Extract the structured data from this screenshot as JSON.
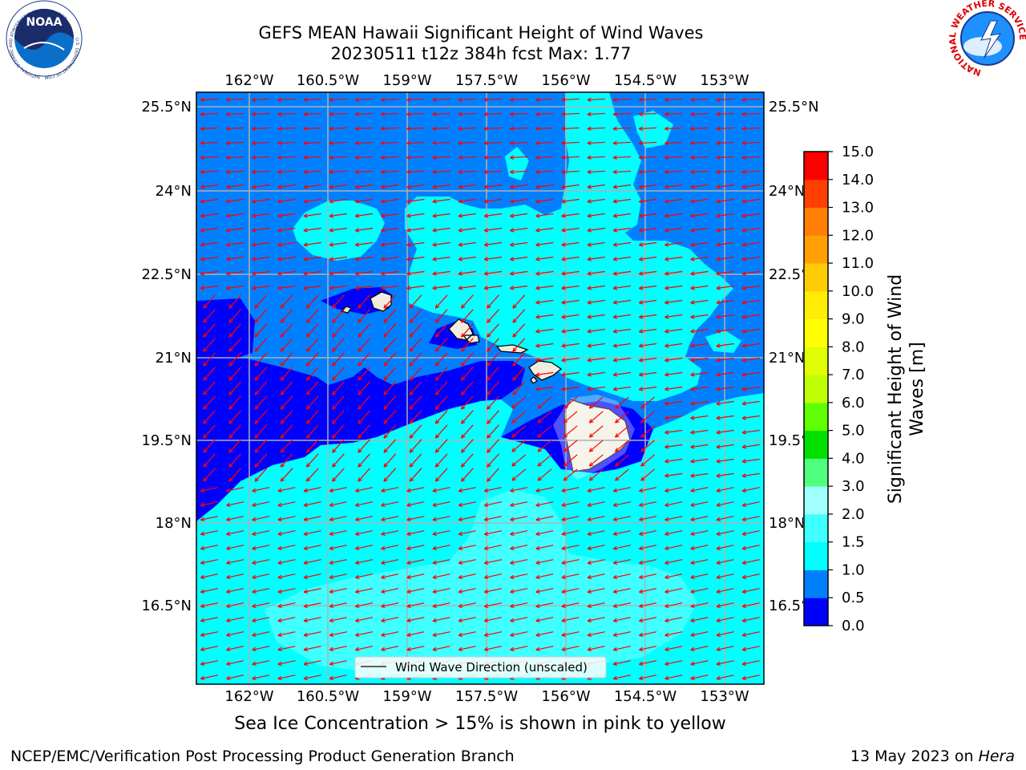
{
  "header": {
    "title_line1": "GEFS MEAN Hawaii Significant Height of Wind Waves",
    "title_line2": "20230511 t12z 384h fcst   Max: 1.77"
  },
  "logos": {
    "noaa_text": "NOAA",
    "noaa_ring": "NATIONAL OCEANIC AND ATMOSPHERIC ADMINISTRATION",
    "noaa_ring_bottom": "U.S. DEPARTMENT OF COMMERCE",
    "nws_ring": "NATIONAL WEATHER SERVICE"
  },
  "map": {
    "lon_labels": [
      "162°W",
      "160.5°W",
      "159°W",
      "157.5°W",
      "156°W",
      "154.5°W",
      "153°W"
    ],
    "lat_labels": [
      "25.5°N",
      "24°N",
      "22.5°N",
      "21°N",
      "19.5°N",
      "18°N",
      "16.5°N"
    ],
    "lon_range": [
      -163,
      -152.25
    ],
    "lat_range": [
      15.25,
      25.75
    ],
    "arrow_color": "#ff0000",
    "legend_label": "Wind Wave Direction (unscaled)",
    "wind_direction": "from east-northeast"
  },
  "colorbar": {
    "label_line1": "Significant Height of Wind",
    "label_line2": "Waves [m]",
    "ticks": [
      "15.0",
      "14.0",
      "13.0",
      "12.0",
      "11.0",
      "10.0",
      "9.0",
      "8.0",
      "7.0",
      "6.0",
      "5.0",
      "4.0",
      "3.0",
      "2.0",
      "1.5",
      "1.0",
      "0.5",
      "0.0"
    ],
    "levels": [
      {
        "min": 0.0,
        "max": 0.5,
        "color": "#0000ff"
      },
      {
        "min": 0.5,
        "max": 1.0,
        "color": "#0080ff"
      },
      {
        "min": 1.0,
        "max": 1.5,
        "color": "#00ffff"
      },
      {
        "min": 1.5,
        "max": 2.0,
        "color": "#40ffff"
      },
      {
        "min": 2.0,
        "max": 3.0,
        "color": "#a0ffff"
      },
      {
        "min": 3.0,
        "max": 4.0,
        "color": "#50ff80"
      },
      {
        "min": 4.0,
        "max": 5.0,
        "color": "#00e000"
      },
      {
        "min": 5.0,
        "max": 6.0,
        "color": "#60ff00"
      },
      {
        "min": 6.0,
        "max": 7.0,
        "color": "#c0ff00"
      },
      {
        "min": 7.0,
        "max": 8.0,
        "color": "#e0ff00"
      },
      {
        "min": 8.0,
        "max": 9.0,
        "color": "#ffff00"
      },
      {
        "min": 9.0,
        "max": 10.0,
        "color": "#ffee00"
      },
      {
        "min": 10.0,
        "max": 11.0,
        "color": "#ffcc00"
      },
      {
        "min": 11.0,
        "max": 12.0,
        "color": "#ffa000"
      },
      {
        "min": 12.0,
        "max": 13.0,
        "color": "#ff8000"
      },
      {
        "min": 13.0,
        "max": 14.0,
        "color": "#ff4000"
      },
      {
        "min": 14.0,
        "max": 15.0,
        "color": "#ff0000"
      }
    ]
  },
  "notes": {
    "ice": "Sea Ice Concentration > 15% is shown in pink to yellow",
    "footer_left": "NCEP/EMC/Verification Post Processing Product Generation Branch",
    "footer_date": "13 May 2023 on ",
    "footer_host": "Hera"
  }
}
